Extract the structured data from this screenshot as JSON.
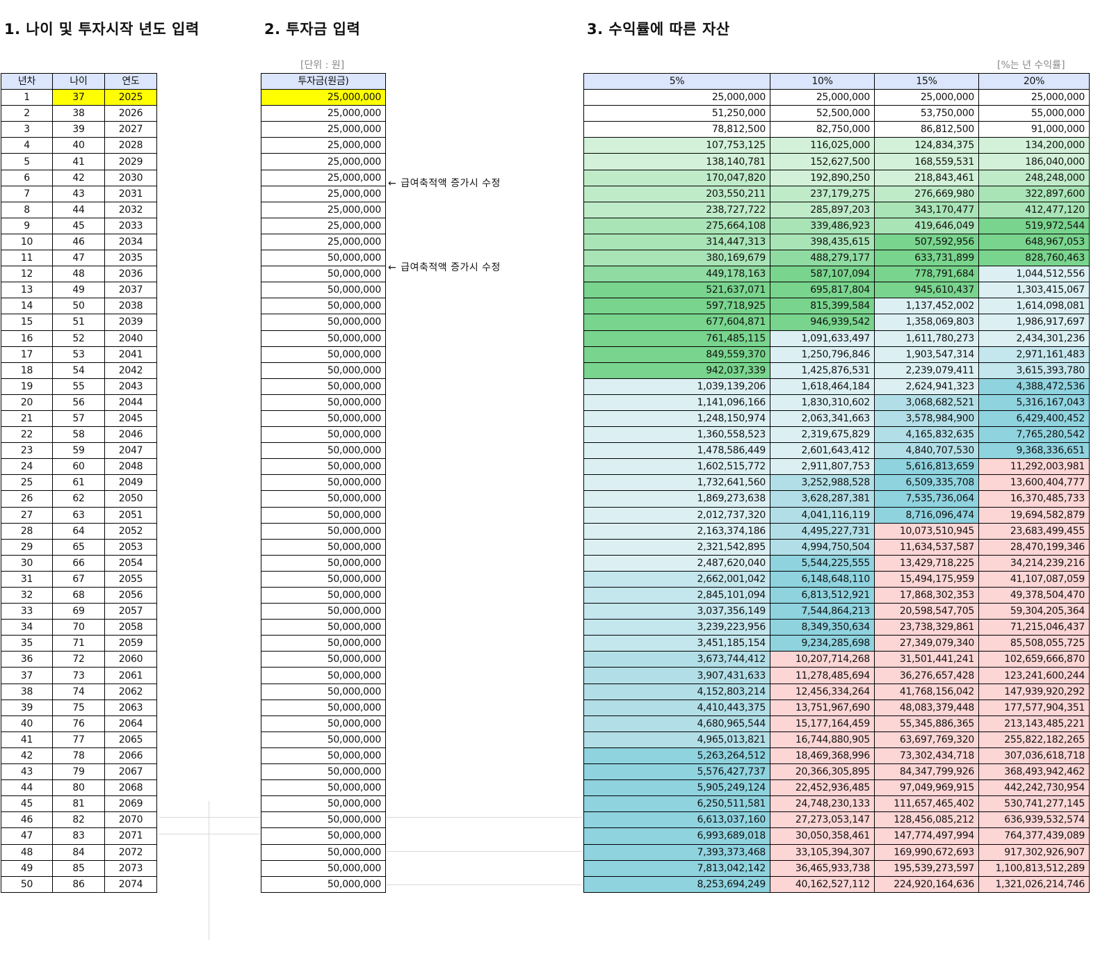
{
  "sections": {
    "s1_title": "1. 나이 및 투자시작 년도 입력",
    "s2_title": "2. 투자금 입력",
    "s3_title": "3. 수익률에 따른 자산"
  },
  "units": {
    "s2_unit": "[단위 : 원]",
    "s3_unit": "[%는 년 수익률]"
  },
  "table1": {
    "headers": [
      "년차",
      "나이",
      "연도"
    ],
    "years": [
      1,
      2,
      3,
      4,
      5,
      6,
      7,
      8,
      9,
      10,
      11,
      12,
      13,
      14,
      15,
      16,
      17,
      18,
      19,
      20,
      21,
      22,
      23,
      24,
      25,
      26,
      27,
      28,
      29,
      30,
      31,
      32,
      33,
      34,
      35,
      36,
      37,
      38,
      39,
      40,
      41,
      42,
      43,
      44,
      45,
      46,
      47,
      48,
      49,
      50
    ],
    "ages": [
      37,
      38,
      39,
      40,
      41,
      42,
      43,
      44,
      45,
      46,
      47,
      48,
      49,
      50,
      51,
      52,
      53,
      54,
      55,
      56,
      57,
      58,
      59,
      60,
      61,
      62,
      63,
      64,
      65,
      66,
      67,
      68,
      69,
      70,
      71,
      72,
      73,
      74,
      75,
      76,
      77,
      78,
      79,
      80,
      81,
      82,
      83,
      84,
      85,
      86
    ],
    "calendar_years": [
      2025,
      2026,
      2027,
      2028,
      2029,
      2030,
      2031,
      2032,
      2033,
      2034,
      2035,
      2036,
      2037,
      2038,
      2039,
      2040,
      2041,
      2042,
      2043,
      2044,
      2045,
      2046,
      2047,
      2048,
      2049,
      2050,
      2051,
      2052,
      2053,
      2054,
      2055,
      2056,
      2057,
      2058,
      2059,
      2060,
      2061,
      2062,
      2063,
      2064,
      2065,
      2066,
      2067,
      2068,
      2069,
      2070,
      2071,
      2072,
      2073,
      2074
    ]
  },
  "table2": {
    "header": "투자금(원금)",
    "values": [
      "25,000,000",
      "25,000,000",
      "25,000,000",
      "25,000,000",
      "25,000,000",
      "25,000,000",
      "25,000,000",
      "25,000,000",
      "25,000,000",
      "25,000,000",
      "50,000,000",
      "50,000,000",
      "50,000,000",
      "50,000,000",
      "50,000,000",
      "50,000,000",
      "50,000,000",
      "50,000,000",
      "50,000,000",
      "50,000,000",
      "50,000,000",
      "50,000,000",
      "50,000,000",
      "50,000,000",
      "50,000,000",
      "50,000,000",
      "50,000,000",
      "50,000,000",
      "50,000,000",
      "50,000,000",
      "50,000,000",
      "50,000,000",
      "50,000,000",
      "50,000,000",
      "50,000,000",
      "50,000,000",
      "50,000,000",
      "50,000,000",
      "50,000,000",
      "50,000,000",
      "50,000,000",
      "50,000,000",
      "50,000,000",
      "50,000,000",
      "50,000,000",
      "50,000,000",
      "50,000,000",
      "50,000,000",
      "50,000,000",
      "50,000,000"
    ]
  },
  "notes": [
    {
      "row": 6,
      "arrow": "←",
      "text": "급여축적액 증가시 수정"
    },
    {
      "row": 11,
      "arrow": "←",
      "text": "급여축적액 증가시 수정"
    }
  ],
  "table3": {
    "headers": [
      "5%",
      "10%",
      "15%",
      "20%"
    ],
    "rows": [
      [
        "25,000,000",
        "25,000,000",
        "25,000,000",
        "25,000,000"
      ],
      [
        "51,250,000",
        "52,500,000",
        "53,750,000",
        "55,000,000"
      ],
      [
        "78,812,500",
        "82,750,000",
        "86,812,500",
        "91,000,000"
      ],
      [
        "107,753,125",
        "116,025,000",
        "124,834,375",
        "134,200,000"
      ],
      [
        "138,140,781",
        "152,627,500",
        "168,559,531",
        "186,040,000"
      ],
      [
        "170,047,820",
        "192,890,250",
        "218,843,461",
        "248,248,000"
      ],
      [
        "203,550,211",
        "237,179,275",
        "276,669,980",
        "322,897,600"
      ],
      [
        "238,727,722",
        "285,897,203",
        "343,170,477",
        "412,477,120"
      ],
      [
        "275,664,108",
        "339,486,923",
        "419,646,049",
        "519,972,544"
      ],
      [
        "314,447,313",
        "398,435,615",
        "507,592,956",
        "648,967,053"
      ],
      [
        "380,169,679",
        "488,279,177",
        "633,731,899",
        "828,760,463"
      ],
      [
        "449,178,163",
        "587,107,094",
        "778,791,684",
        "1,044,512,556"
      ],
      [
        "521,637,071",
        "695,817,804",
        "945,610,437",
        "1,303,415,067"
      ],
      [
        "597,718,925",
        "815,399,584",
        "1,137,452,002",
        "1,614,098,081"
      ],
      [
        "677,604,871",
        "946,939,542",
        "1,358,069,803",
        "1,986,917,697"
      ],
      [
        "761,485,115",
        "1,091,633,497",
        "1,611,780,273",
        "2,434,301,236"
      ],
      [
        "849,559,370",
        "1,250,796,846",
        "1,903,547,314",
        "2,971,161,483"
      ],
      [
        "942,037,339",
        "1,425,876,531",
        "2,239,079,411",
        "3,615,393,780"
      ],
      [
        "1,039,139,206",
        "1,618,464,184",
        "2,624,941,323",
        "4,388,472,536"
      ],
      [
        "1,141,096,166",
        "1,830,310,602",
        "3,068,682,521",
        "5,316,167,043"
      ],
      [
        "1,248,150,974",
        "2,063,341,663",
        "3,578,984,900",
        "6,429,400,452"
      ],
      [
        "1,360,558,523",
        "2,319,675,829",
        "4,165,832,635",
        "7,765,280,542"
      ],
      [
        "1,478,586,449",
        "2,601,643,412",
        "4,840,707,530",
        "9,368,336,651"
      ],
      [
        "1,602,515,772",
        "2,911,807,753",
        "5,616,813,659",
        "11,292,003,981"
      ],
      [
        "1,732,641,560",
        "3,252,988,528",
        "6,509,335,708",
        "13,600,404,777"
      ],
      [
        "1,869,273,638",
        "3,628,287,381",
        "7,535,736,064",
        "16,370,485,733"
      ],
      [
        "2,012,737,320",
        "4,041,116,119",
        "8,716,096,474",
        "19,694,582,879"
      ],
      [
        "2,163,374,186",
        "4,495,227,731",
        "10,073,510,945",
        "23,683,499,455"
      ],
      [
        "2,321,542,895",
        "4,994,750,504",
        "11,634,537,587",
        "28,470,199,346"
      ],
      [
        "2,487,620,040",
        "5,544,225,555",
        "13,429,718,225",
        "34,214,239,216"
      ],
      [
        "2,662,001,042",
        "6,148,648,110",
        "15,494,175,959",
        "41,107,087,059"
      ],
      [
        "2,845,101,094",
        "6,813,512,921",
        "17,868,302,353",
        "49,378,504,470"
      ],
      [
        "3,037,356,149",
        "7,544,864,213",
        "20,598,547,705",
        "59,304,205,364"
      ],
      [
        "3,239,223,956",
        "8,349,350,634",
        "23,738,329,861",
        "71,215,046,437"
      ],
      [
        "3,451,185,154",
        "9,234,285,698",
        "27,349,079,340",
        "85,508,055,725"
      ],
      [
        "3,673,744,412",
        "10,207,714,268",
        "31,501,441,241",
        "102,659,666,870"
      ],
      [
        "3,907,431,633",
        "11,278,485,694",
        "36,276,657,428",
        "123,241,600,244"
      ],
      [
        "4,152,803,214",
        "12,456,334,264",
        "41,768,156,042",
        "147,939,920,292"
      ],
      [
        "4,410,443,375",
        "13,751,967,690",
        "48,083,379,448",
        "177,577,904,351"
      ],
      [
        "4,680,965,544",
        "15,177,164,459",
        "55,345,886,365",
        "213,143,485,221"
      ],
      [
        "4,965,013,821",
        "16,744,880,905",
        "63,697,769,320",
        "255,822,182,265"
      ],
      [
        "5,263,264,512",
        "18,469,368,996",
        "73,302,434,718",
        "307,036,618,718"
      ],
      [
        "5,576,427,737",
        "20,366,305,895",
        "84,347,799,926",
        "368,493,942,462"
      ],
      [
        "5,905,249,124",
        "22,452,936,485",
        "97,049,969,915",
        "442,242,730,954"
      ],
      [
        "6,250,511,581",
        "24,748,230,133",
        "111,657,465,402",
        "530,741,277,145"
      ],
      [
        "6,613,037,160",
        "27,273,053,147",
        "128,456,085,212",
        "636,939,532,574"
      ],
      [
        "6,993,689,018",
        "30,050,358,461",
        "147,774,497,994",
        "764,377,439,089"
      ],
      [
        "7,393,373,468",
        "33,105,394,307",
        "169,990,672,693",
        "917,302,926,907"
      ],
      [
        "7,813,042,142",
        "36,465,933,738",
        "195,539,273,597",
        "1,100,813,512,289"
      ],
      [
        "8,253,694,249",
        "40,162,527,112",
        "224,920,164,636",
        "1,321,026,214,746"
      ]
    ]
  },
  "colors": {
    "header_bg": "#dbe5fb",
    "input_highlight": "#ffff00",
    "scale_white": "#ffffff",
    "scale_green": [
      "#d2f1d8",
      "#bfebc9",
      "#a9e4b6",
      "#8fdba1",
      "#79d48d"
    ],
    "scale_blue": [
      "#dcf0f4",
      "#c4e6ed",
      "#b2dfe7",
      "#9fd8e2",
      "#8fd3df",
      "#86d0dc"
    ],
    "scale_pink": "#fcd5d5"
  }
}
